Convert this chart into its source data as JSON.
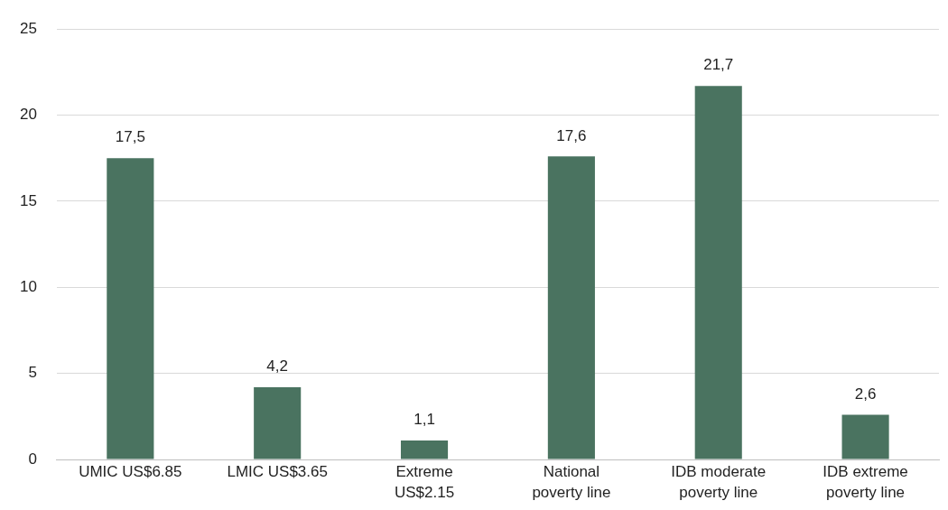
{
  "chart_data": {
    "type": "bar",
    "categories": [
      "UMIC US$6.85",
      "LMIC US$3.65",
      "Extreme US$2.15",
      "National poverty line",
      "IDB moderate poverty line",
      "IDB extreme poverty line"
    ],
    "values": [
      17.5,
      4.2,
      1.1,
      17.6,
      21.7,
      2.6
    ],
    "value_labels": [
      "17,5",
      "4,2",
      "1,1",
      "17,6",
      "21,7",
      "2,6"
    ],
    "color": "#4a7360",
    "ylim": [
      0,
      25
    ],
    "yticks": [
      0,
      5,
      10,
      15,
      20,
      25
    ],
    "grid": "y",
    "legend": false
  }
}
